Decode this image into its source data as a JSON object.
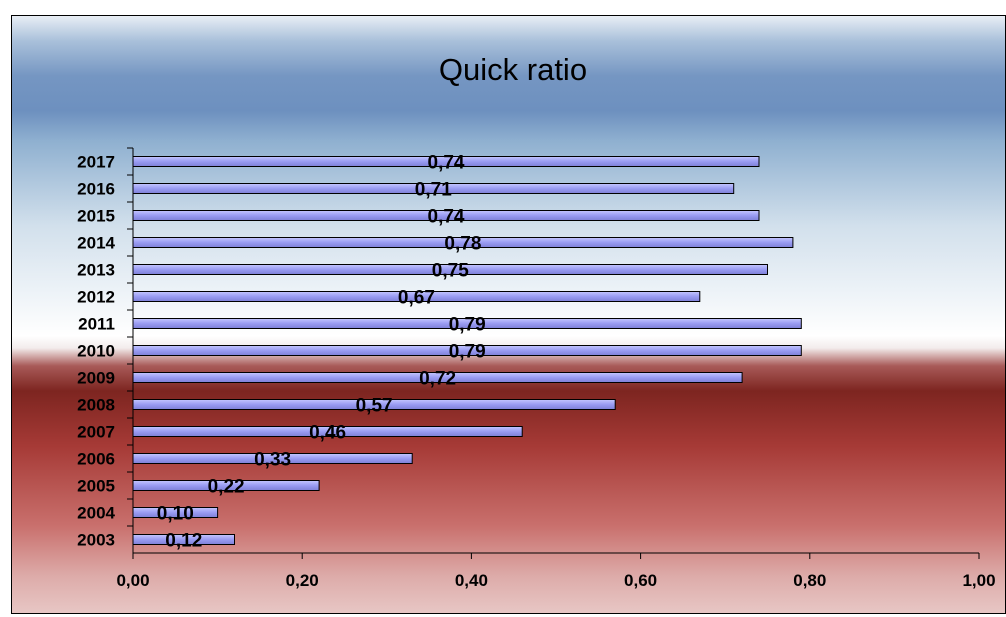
{
  "chart_data": {
    "type": "bar",
    "orientation": "horizontal",
    "title": "Quick ratio",
    "xlabel": "",
    "ylabel": "",
    "categories": [
      "2003",
      "2004",
      "2005",
      "2006",
      "2007",
      "2008",
      "2009",
      "2010",
      "2011",
      "2012",
      "2013",
      "2014",
      "2015",
      "2016",
      "2017"
    ],
    "values": [
      0.12,
      0.1,
      0.22,
      0.33,
      0.46,
      0.57,
      0.72,
      0.79,
      0.79,
      0.67,
      0.75,
      0.78,
      0.74,
      0.71,
      0.74
    ],
    "data_labels": [
      "0,12",
      "0,10",
      "0,22",
      "0,33",
      "0,46",
      "0,57",
      "0,72",
      "0,79",
      "0,79",
      "0,67",
      "0,75",
      "0,78",
      "0,74",
      "0,71",
      "0,74"
    ],
    "xlim": [
      0,
      1
    ],
    "xticks": [
      0,
      0.2,
      0.4,
      0.6,
      0.8,
      1.0
    ],
    "xtick_labels": [
      "0,00",
      "0,20",
      "0,40",
      "0,60",
      "0,80",
      "1,00"
    ],
    "grid": false,
    "legend": "none",
    "colors": {
      "bar_fill": "#9a9cf2",
      "bar_highlight": "#c4c6ff",
      "bar_stroke": "#000000",
      "axis": "#000000"
    }
  }
}
